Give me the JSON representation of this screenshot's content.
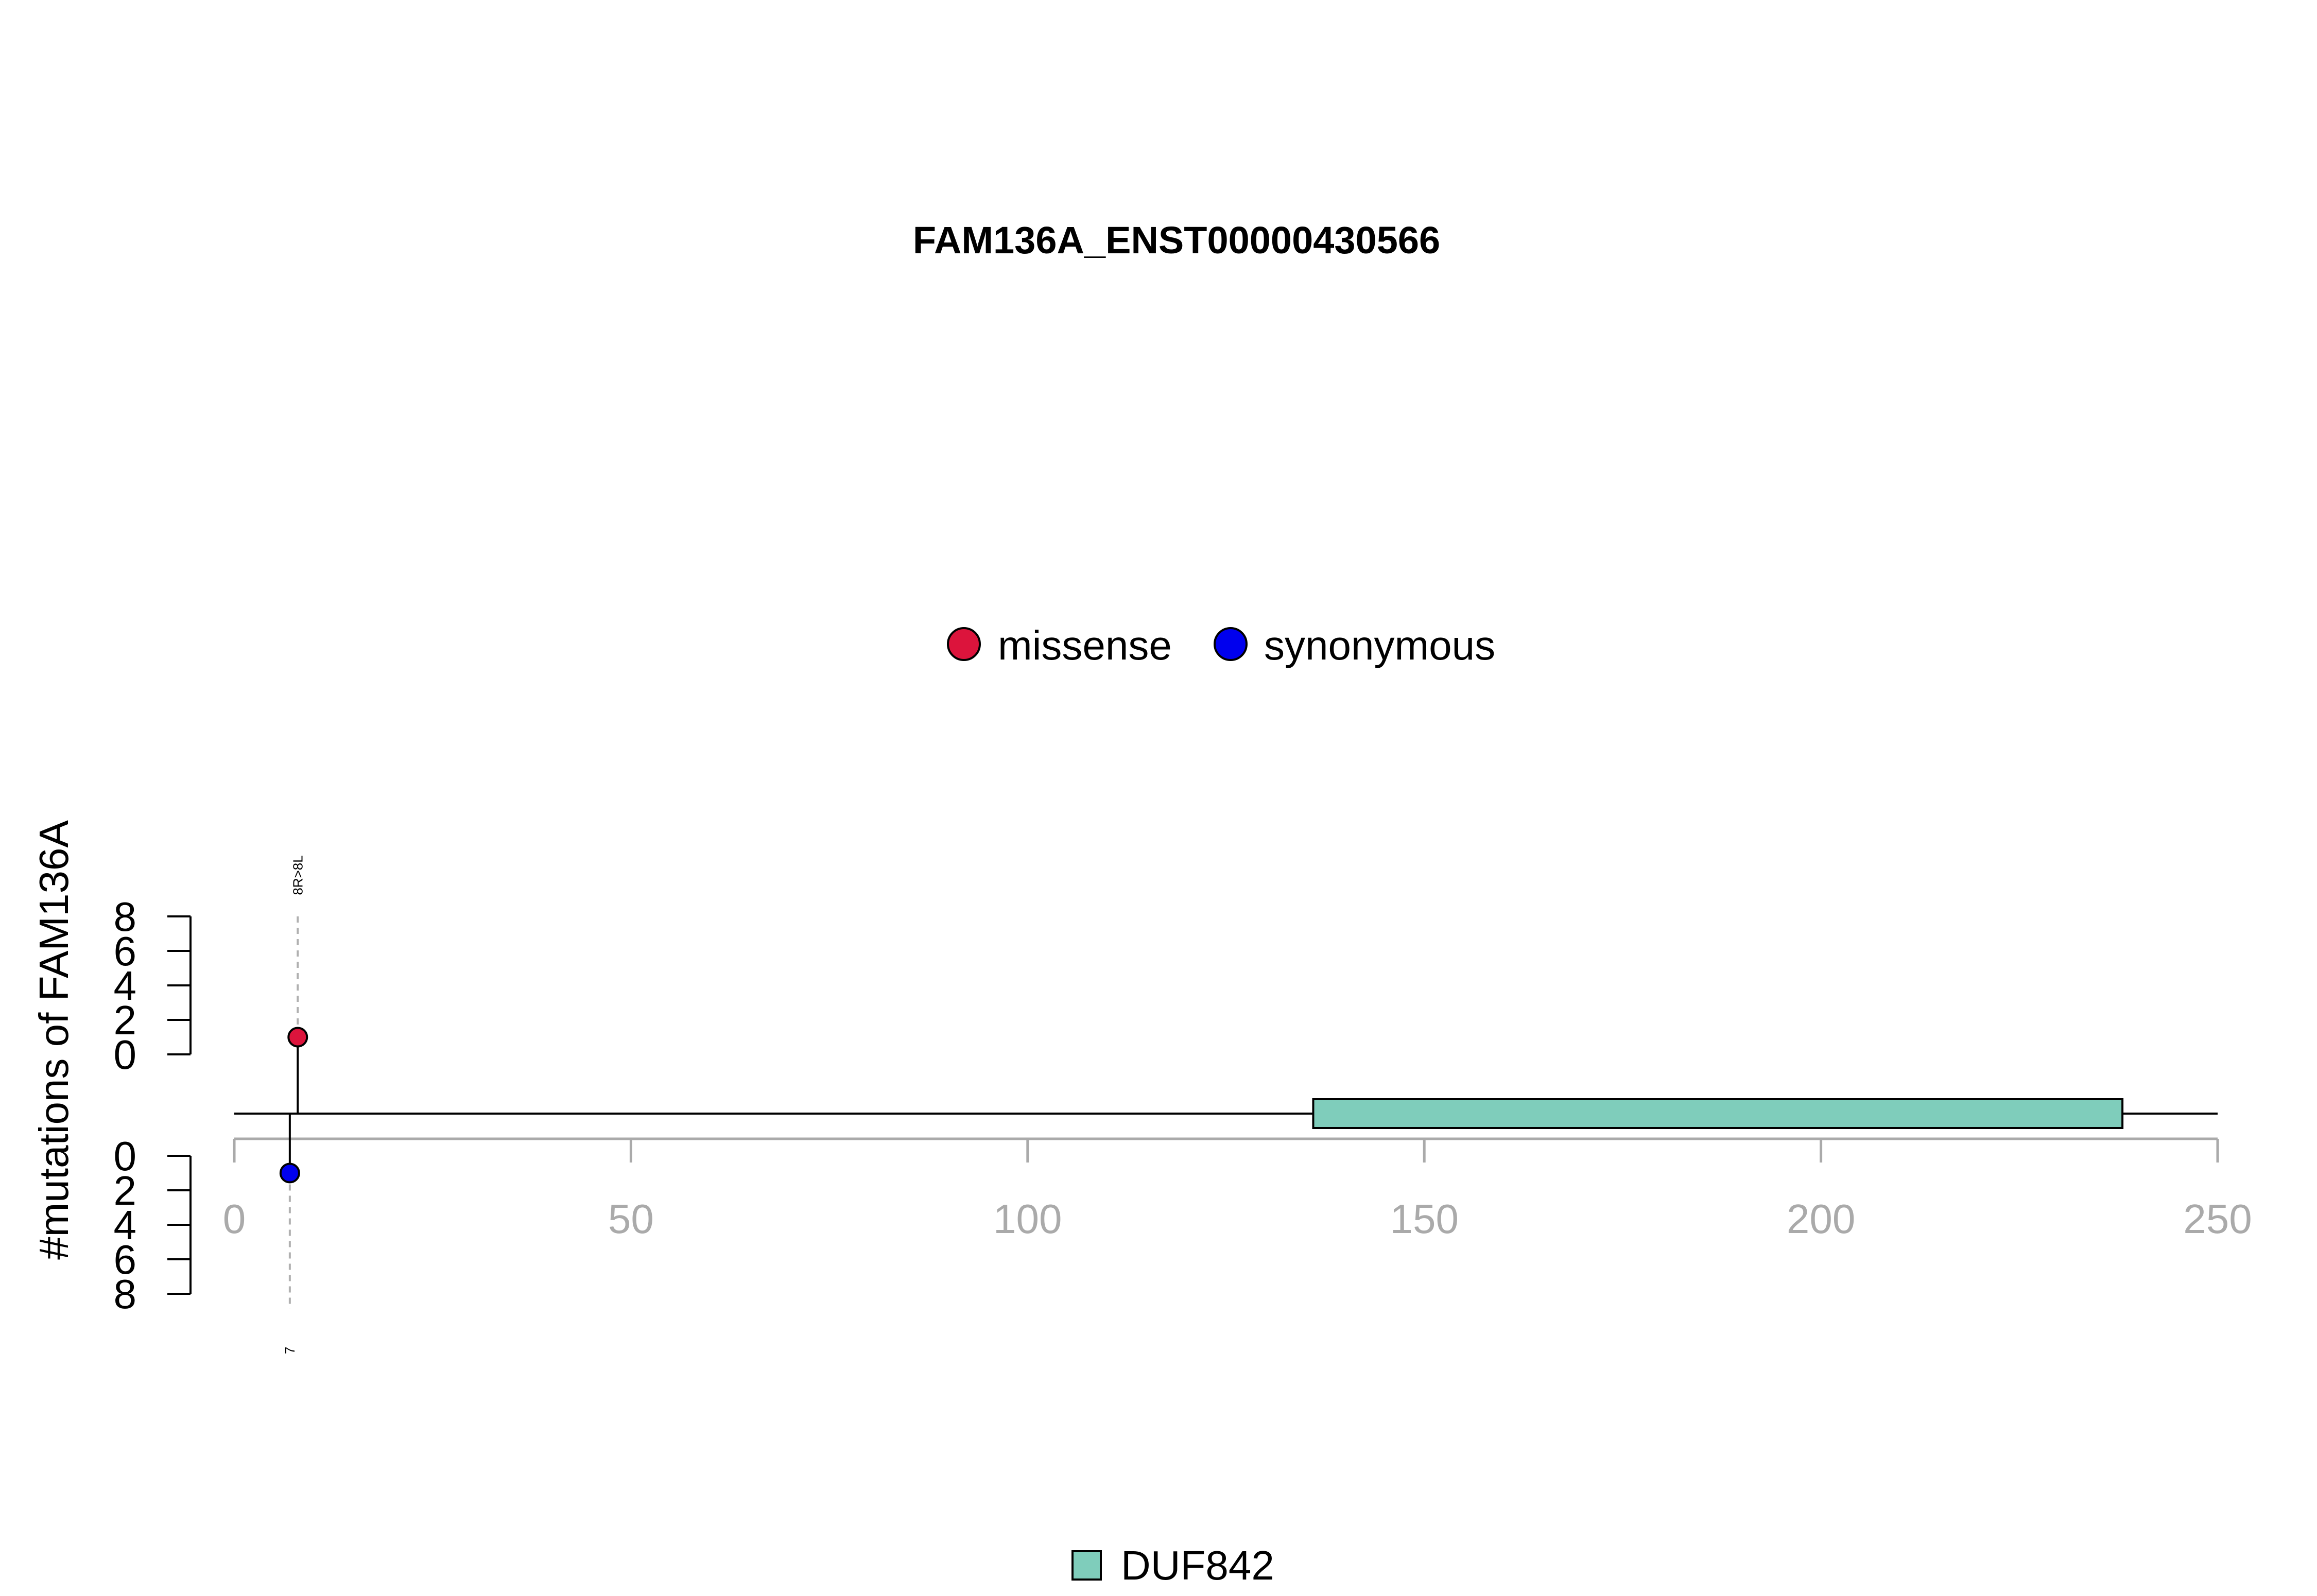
{
  "chart_data": {
    "type": "lollipop",
    "title": "FAM136A_ENST00000430566",
    "ylabel": "#mutations of FAM136A",
    "protein_length": 250,
    "xlim": [
      0,
      250
    ],
    "x_ticks": [
      "0",
      "50",
      "100",
      "150",
      "200",
      "250"
    ],
    "x_tick_values": [
      0,
      50,
      100,
      150,
      200,
      250
    ],
    "y_top_ticks": [
      "0",
      "2",
      "4",
      "6",
      "8"
    ],
    "y_bottom_ticks": [
      "0",
      "2",
      "4",
      "6",
      "8"
    ],
    "y_tick_values": [
      0,
      2,
      4,
      6,
      8
    ],
    "ylim": [
      0,
      8
    ],
    "legend_top": [
      {
        "name": "missense",
        "color": "#dc143c"
      },
      {
        "name": "synonymous",
        "color": "#0000ee"
      }
    ],
    "mutations_top": [
      {
        "position": 8,
        "count": 1,
        "label": "8R>8L",
        "type": "missense",
        "color": "#dc143c"
      }
    ],
    "mutations_bottom": [
      {
        "position": 7,
        "count": 1,
        "label": "7",
        "type": "synonymous",
        "color": "#0000ee"
      }
    ],
    "domains": [
      {
        "name": "DUF842",
        "start": 136,
        "end": 238,
        "color": "#7fcdbb"
      }
    ],
    "legend_bottom": [
      {
        "name": "DUF842",
        "color": "#7fcdbb"
      }
    ]
  }
}
